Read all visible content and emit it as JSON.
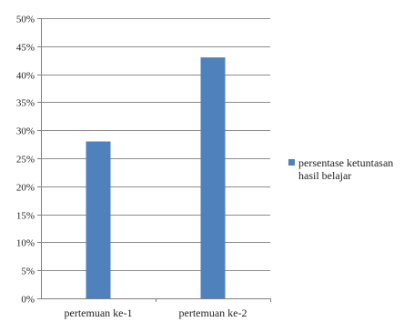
{
  "chart_data": {
    "type": "bar",
    "categories": [
      "pertemuan ke-1",
      "pertemuan ke-2"
    ],
    "series": [
      {
        "name": "persentase ketuntasan hasil belajar",
        "values": [
          28,
          43
        ]
      }
    ],
    "ylim": [
      0,
      50
    ],
    "ytick_step": 5,
    "ytick_suffix": "%",
    "grid": true,
    "legend_position": "right",
    "colors": {
      "bar": "#4f81bd",
      "grid": "#8c8c8c",
      "axis": "#7f7f7f"
    }
  }
}
